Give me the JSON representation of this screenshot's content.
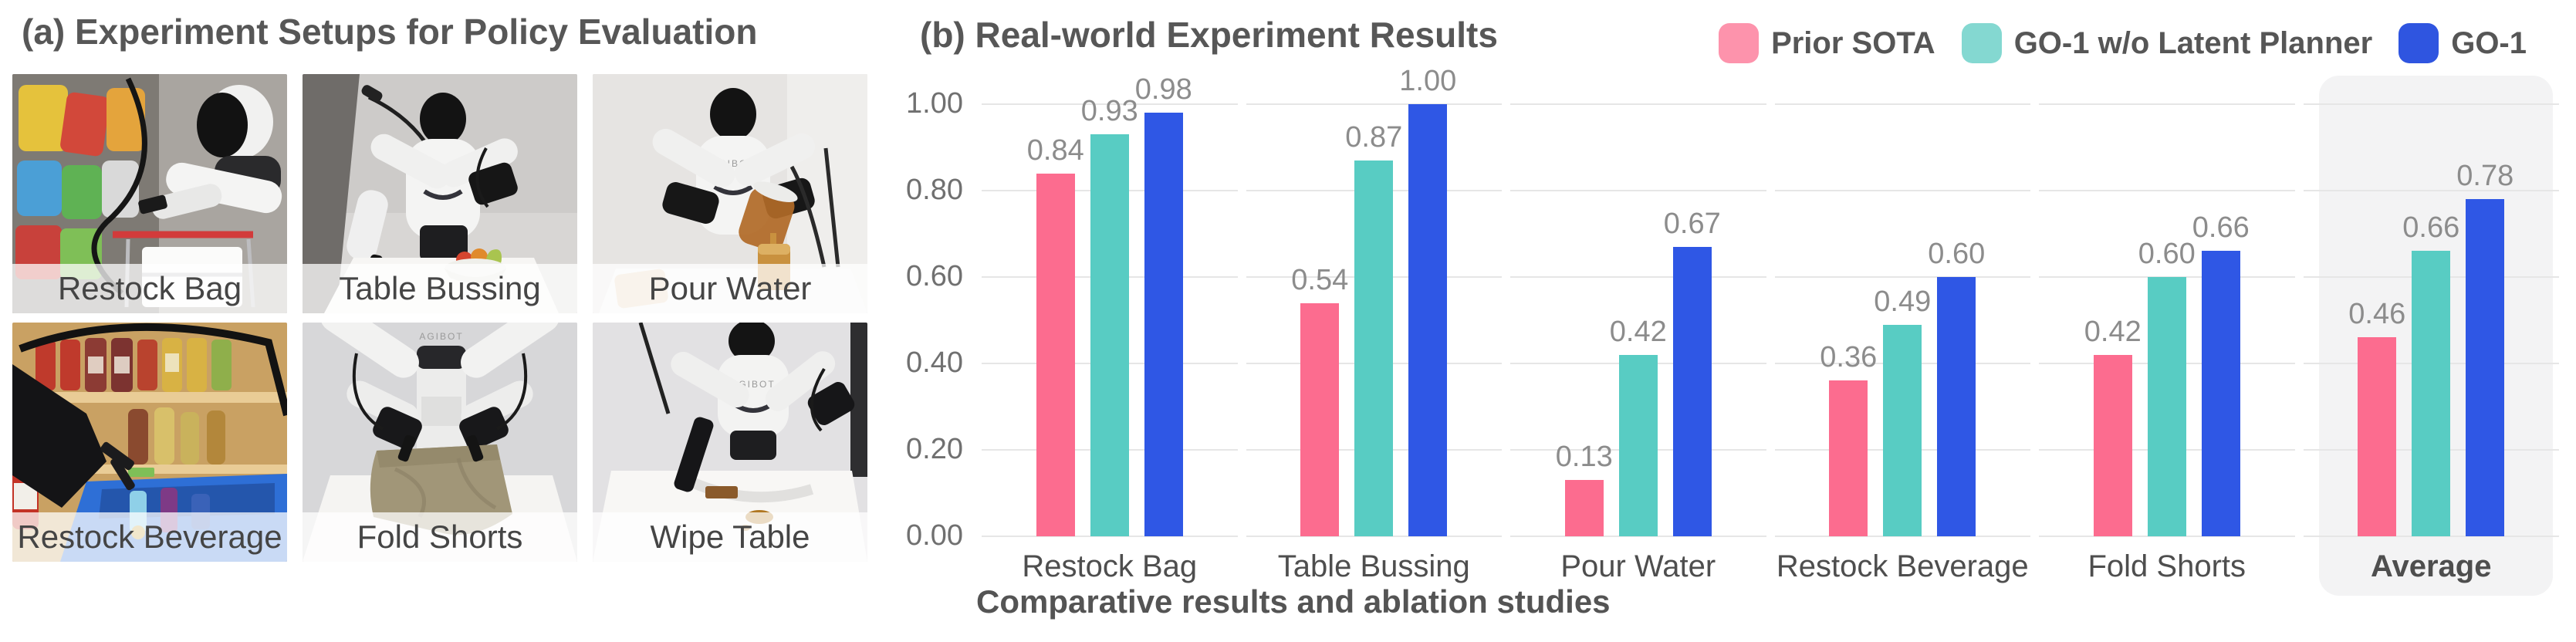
{
  "panel_a": {
    "title": "(a) Experiment Setups for Policy Evaluation",
    "robot_brand": "AGIBOT",
    "tiles": [
      {
        "label": "Restock Bag"
      },
      {
        "label": "Table Bussing"
      },
      {
        "label": "Pour Water"
      },
      {
        "label": "Restock Beverage"
      },
      {
        "label": "Fold Shorts"
      },
      {
        "label": "Wipe Table"
      }
    ]
  },
  "panel_b": {
    "title": "(b) Real-world Experiment Results",
    "caption": "Comparative results and ablation studies",
    "legend": [
      {
        "label": "Prior SOTA",
        "swatch_color": "#FD93AC"
      },
      {
        "label": "GO-1 w/o Latent Planner",
        "swatch_color": "#84D8D1"
      },
      {
        "label": "GO-1",
        "swatch_color": "#2F55E0"
      }
    ]
  },
  "chart_data": {
    "type": "bar",
    "title": "(b) Real-world Experiment Results",
    "categories": [
      "Restock Bag",
      "Table Bussing",
      "Pour Water",
      "Restock Beverage",
      "Fold Shorts",
      "Average"
    ],
    "series": [
      {
        "name": "Prior SOTA",
        "color": "#FC6C8F",
        "values": [
          0.84,
          0.54,
          0.13,
          0.36,
          0.42,
          0.46
        ]
      },
      {
        "name": "GO-1 w/o Latent Planner",
        "color": "#58CCC3",
        "values": [
          0.93,
          0.87,
          0.42,
          0.49,
          0.6,
          0.66
        ]
      },
      {
        "name": "GO-1",
        "color": "#2F57E5",
        "values": [
          0.98,
          1.0,
          0.67,
          0.6,
          0.66,
          0.78
        ]
      }
    ],
    "ylim": [
      0,
      1.0
    ],
    "yticks": [
      0.0,
      0.2,
      0.4,
      0.6,
      0.8,
      1.0
    ],
    "ytick_labels": [
      "0.00",
      "0.20",
      "0.40",
      "0.60",
      "0.80",
      "1.00"
    ],
    "grid": true,
    "legend_position": "top-right",
    "highlight_category": "Average",
    "value_labels": "two-decimal, gray, above each bar"
  }
}
